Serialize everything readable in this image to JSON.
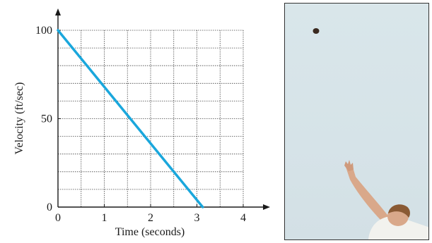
{
  "chart_data": {
    "type": "line",
    "title": "",
    "xlabel": "Time (seconds)",
    "ylabel": "Velocity (ft/sec)",
    "xlim": [
      0,
      4
    ],
    "ylim": [
      0,
      100
    ],
    "x_ticks": [
      "0",
      "1",
      "2",
      "3",
      "4"
    ],
    "y_ticks": [
      "0",
      "50",
      "100"
    ],
    "grid": true,
    "series": [
      {
        "x": [
          0,
          3.125
        ],
        "y": [
          100,
          0
        ]
      }
    ],
    "colors": {
      "line": "#1aa7dc",
      "axis": "#1a1a1a",
      "grid": "#444444"
    }
  },
  "photo": {
    "icon": "ball-toss-photo-icon",
    "colors": {
      "sky": "#d8e5ea",
      "ball": "#3a2a20",
      "skin": "#d9a88a",
      "shirt": "#f2f2ee"
    }
  }
}
